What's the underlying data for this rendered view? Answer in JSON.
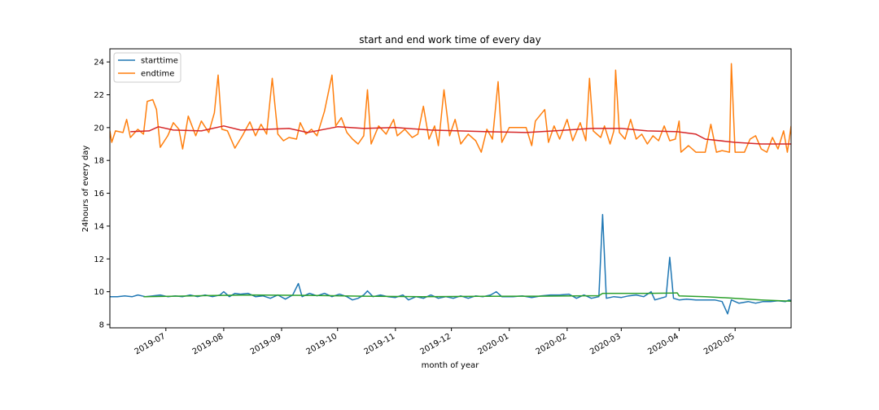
{
  "chart_data": {
    "type": "line",
    "title": "start and end work time of every day",
    "xlabel": "month of year",
    "ylabel": "24hours of every day",
    "xlim": [
      "2019-06-01",
      "2020-05-31"
    ],
    "ylim": [
      7.8,
      24.8
    ],
    "yticks": [
      8,
      10,
      12,
      14,
      16,
      18,
      20,
      22,
      24
    ],
    "ytick_labels": [
      "8",
      "10",
      "12",
      "14",
      "16",
      "18",
      "20",
      "22",
      "24"
    ],
    "xticks": [
      "2019-07-01",
      "2019-08-01",
      "2019-09-01",
      "2019-10-01",
      "2019-11-01",
      "2019-12-01",
      "2020-01-01",
      "2020-02-01",
      "2020-03-01",
      "2020-04-01",
      "2020-05-01"
    ],
    "xtick_labels": [
      "2019-07",
      "2019-08",
      "2019-09",
      "2019-10",
      "2019-11",
      "2019-12",
      "2020-01",
      "2020-02",
      "2020-03",
      "2020-04",
      "2020-05"
    ],
    "legend": {
      "position": "top-left",
      "entries": [
        "starttime",
        "endtime"
      ]
    },
    "grid": false,
    "series": [
      {
        "name": "starttime",
        "color": "#1f77b4",
        "points": [
          [
            "2019-06-01",
            9.7
          ],
          [
            "2019-06-05",
            9.7
          ],
          [
            "2019-06-09",
            9.75
          ],
          [
            "2019-06-13",
            9.7
          ],
          [
            "2019-06-16",
            9.8
          ],
          [
            "2019-06-20",
            9.7
          ],
          [
            "2019-06-24",
            9.75
          ],
          [
            "2019-06-28",
            9.8
          ],
          [
            "2019-07-02",
            9.7
          ],
          [
            "2019-07-06",
            9.75
          ],
          [
            "2019-07-10",
            9.7
          ],
          [
            "2019-07-14",
            9.8
          ],
          [
            "2019-07-18",
            9.7
          ],
          [
            "2019-07-22",
            9.8
          ],
          [
            "2019-07-26",
            9.7
          ],
          [
            "2019-07-30",
            9.8
          ],
          [
            "2019-08-01",
            10.0
          ],
          [
            "2019-08-04",
            9.7
          ],
          [
            "2019-08-07",
            9.9
          ],
          [
            "2019-08-10",
            9.85
          ],
          [
            "2019-08-14",
            9.9
          ],
          [
            "2019-08-18",
            9.7
          ],
          [
            "2019-08-22",
            9.75
          ],
          [
            "2019-08-26",
            9.6
          ],
          [
            "2019-08-30",
            9.8
          ],
          [
            "2019-09-03",
            9.55
          ],
          [
            "2019-09-07",
            9.8
          ],
          [
            "2019-09-10",
            10.5
          ],
          [
            "2019-09-12",
            9.7
          ],
          [
            "2019-09-16",
            9.9
          ],
          [
            "2019-09-20",
            9.75
          ],
          [
            "2019-09-24",
            9.9
          ],
          [
            "2019-09-28",
            9.7
          ],
          [
            "2019-10-02",
            9.85
          ],
          [
            "2019-10-06",
            9.7
          ],
          [
            "2019-10-09",
            9.5
          ],
          [
            "2019-10-12",
            9.6
          ],
          [
            "2019-10-15",
            9.8
          ],
          [
            "2019-10-17",
            10.05
          ],
          [
            "2019-10-20",
            9.7
          ],
          [
            "2019-10-24",
            9.8
          ],
          [
            "2019-10-28",
            9.7
          ],
          [
            "2019-11-01",
            9.65
          ],
          [
            "2019-11-05",
            9.8
          ],
          [
            "2019-11-08",
            9.5
          ],
          [
            "2019-11-12",
            9.7
          ],
          [
            "2019-11-16",
            9.6
          ],
          [
            "2019-11-20",
            9.8
          ],
          [
            "2019-11-24",
            9.6
          ],
          [
            "2019-11-28",
            9.7
          ],
          [
            "2019-12-02",
            9.6
          ],
          [
            "2019-12-06",
            9.75
          ],
          [
            "2019-12-10",
            9.6
          ],
          [
            "2019-12-14",
            9.75
          ],
          [
            "2019-12-18",
            9.7
          ],
          [
            "2019-12-22",
            9.8
          ],
          [
            "2019-12-25",
            10.0
          ],
          [
            "2019-12-28",
            9.7
          ],
          [
            "2020-01-03",
            9.7
          ],
          [
            "2020-01-08",
            9.75
          ],
          [
            "2020-01-13",
            9.65
          ],
          [
            "2020-01-18",
            9.75
          ],
          [
            "2020-01-23",
            9.8
          ],
          [
            "2020-01-28",
            9.8
          ],
          [
            "2020-02-02",
            9.85
          ],
          [
            "2020-02-06",
            9.6
          ],
          [
            "2020-02-10",
            9.8
          ],
          [
            "2020-02-14",
            9.6
          ],
          [
            "2020-02-18",
            9.7
          ],
          [
            "2020-02-20",
            14.7
          ],
          [
            "2020-02-22",
            9.6
          ],
          [
            "2020-02-26",
            9.7
          ],
          [
            "2020-03-01",
            9.65
          ],
          [
            "2020-03-05",
            9.75
          ],
          [
            "2020-03-09",
            9.8
          ],
          [
            "2020-03-13",
            9.7
          ],
          [
            "2020-03-17",
            10.0
          ],
          [
            "2020-03-19",
            9.5
          ],
          [
            "2020-03-22",
            9.6
          ],
          [
            "2020-03-25",
            9.7
          ],
          [
            "2020-03-27",
            12.1
          ],
          [
            "2020-03-29",
            9.6
          ],
          [
            "2020-04-01",
            9.5
          ],
          [
            "2020-04-05",
            9.55
          ],
          [
            "2020-04-10",
            9.5
          ],
          [
            "2020-04-15",
            9.5
          ],
          [
            "2020-04-20",
            9.5
          ],
          [
            "2020-04-24",
            9.4
          ],
          [
            "2020-04-27",
            8.65
          ],
          [
            "2020-04-29",
            9.5
          ],
          [
            "2020-05-03",
            9.3
          ],
          [
            "2020-05-08",
            9.4
          ],
          [
            "2020-05-12",
            9.3
          ],
          [
            "2020-05-16",
            9.4
          ],
          [
            "2020-05-20",
            9.4
          ],
          [
            "2020-05-24",
            9.45
          ],
          [
            "2020-05-28",
            9.4
          ],
          [
            "2020-05-30",
            9.5
          ],
          [
            "2020-05-31",
            9.45
          ]
        ]
      },
      {
        "name": "endtime",
        "color": "#ff7f0e",
        "points": [
          [
            "2019-06-01",
            19.8
          ],
          [
            "2019-06-02",
            19.1
          ],
          [
            "2019-06-04",
            19.8
          ],
          [
            "2019-06-08",
            19.7
          ],
          [
            "2019-06-10",
            20.5
          ],
          [
            "2019-06-12",
            19.4
          ],
          [
            "2019-06-16",
            19.9
          ],
          [
            "2019-06-19",
            19.6
          ],
          [
            "2019-06-21",
            21.6
          ],
          [
            "2019-06-24",
            21.7
          ],
          [
            "2019-06-26",
            21.1
          ],
          [
            "2019-06-28",
            18.8
          ],
          [
            "2019-07-02",
            19.5
          ],
          [
            "2019-07-05",
            20.3
          ],
          [
            "2019-07-08",
            19.9
          ],
          [
            "2019-07-10",
            18.7
          ],
          [
            "2019-07-13",
            20.7
          ],
          [
            "2019-07-17",
            19.5
          ],
          [
            "2019-07-20",
            20.4
          ],
          [
            "2019-07-24",
            19.7
          ],
          [
            "2019-07-27",
            20.9
          ],
          [
            "2019-07-29",
            23.2
          ],
          [
            "2019-07-31",
            19.9
          ],
          [
            "2019-08-03",
            19.8
          ],
          [
            "2019-08-07",
            18.75
          ],
          [
            "2019-08-11",
            19.5
          ],
          [
            "2019-08-15",
            20.35
          ],
          [
            "2019-08-18",
            19.5
          ],
          [
            "2019-08-21",
            20.2
          ],
          [
            "2019-08-24",
            19.6
          ],
          [
            "2019-08-27",
            23.0
          ],
          [
            "2019-08-30",
            19.6
          ],
          [
            "2019-09-02",
            19.2
          ],
          [
            "2019-09-05",
            19.4
          ],
          [
            "2019-09-09",
            19.3
          ],
          [
            "2019-09-11",
            20.3
          ],
          [
            "2019-09-14",
            19.6
          ],
          [
            "2019-09-17",
            19.9
          ],
          [
            "2019-09-20",
            19.5
          ],
          [
            "2019-09-24",
            21.0
          ],
          [
            "2019-09-28",
            23.2
          ],
          [
            "2019-09-30",
            20.1
          ],
          [
            "2019-10-03",
            20.6
          ],
          [
            "2019-10-06",
            19.7
          ],
          [
            "2019-10-09",
            19.3
          ],
          [
            "2019-10-12",
            19.0
          ],
          [
            "2019-10-15",
            19.5
          ],
          [
            "2019-10-17",
            22.3
          ],
          [
            "2019-10-19",
            19.0
          ],
          [
            "2019-10-23",
            20.1
          ],
          [
            "2019-10-27",
            19.6
          ],
          [
            "2019-10-31",
            20.5
          ],
          [
            "2019-11-02",
            19.5
          ],
          [
            "2019-11-06",
            19.9
          ],
          [
            "2019-11-10",
            19.4
          ],
          [
            "2019-11-13",
            19.6
          ],
          [
            "2019-11-16",
            21.3
          ],
          [
            "2019-11-19",
            19.3
          ],
          [
            "2019-11-22",
            20.1
          ],
          [
            "2019-11-24",
            18.9
          ],
          [
            "2019-11-27",
            22.3
          ],
          [
            "2019-11-30",
            19.5
          ],
          [
            "2019-12-03",
            20.5
          ],
          [
            "2019-12-06",
            19.0
          ],
          [
            "2019-12-10",
            19.6
          ],
          [
            "2019-12-14",
            19.2
          ],
          [
            "2019-12-17",
            18.5
          ],
          [
            "2019-12-20",
            19.9
          ],
          [
            "2019-12-23",
            19.3
          ],
          [
            "2019-12-26",
            22.8
          ],
          [
            "2019-12-28",
            19.1
          ],
          [
            "2020-01-01",
            20.0
          ],
          [
            "2020-01-05",
            20.0
          ],
          [
            "2020-01-10",
            20.0
          ],
          [
            "2020-01-13",
            18.9
          ],
          [
            "2020-01-15",
            20.4
          ],
          [
            "2020-01-20",
            21.1
          ],
          [
            "2020-01-22",
            19.1
          ],
          [
            "2020-01-25",
            20.1
          ],
          [
            "2020-01-28",
            19.3
          ],
          [
            "2020-02-01",
            20.5
          ],
          [
            "2020-02-04",
            19.2
          ],
          [
            "2020-02-08",
            20.3
          ],
          [
            "2020-02-11",
            19.2
          ],
          [
            "2020-02-13",
            23.0
          ],
          [
            "2020-02-15",
            19.8
          ],
          [
            "2020-02-19",
            19.4
          ],
          [
            "2020-02-21",
            20.1
          ],
          [
            "2020-02-24",
            19.0
          ],
          [
            "2020-02-26",
            19.8
          ],
          [
            "2020-02-27",
            23.5
          ],
          [
            "2020-02-29",
            19.7
          ],
          [
            "2020-03-03",
            19.3
          ],
          [
            "2020-03-06",
            20.5
          ],
          [
            "2020-03-09",
            19.3
          ],
          [
            "2020-03-12",
            19.6
          ],
          [
            "2020-03-15",
            19.0
          ],
          [
            "2020-03-18",
            19.5
          ],
          [
            "2020-03-21",
            19.2
          ],
          [
            "2020-03-24",
            20.1
          ],
          [
            "2020-03-27",
            19.2
          ],
          [
            "2020-03-30",
            19.3
          ],
          [
            "2020-04-01",
            20.4
          ],
          [
            "2020-04-02",
            18.5
          ],
          [
            "2020-04-06",
            18.9
          ],
          [
            "2020-04-10",
            18.5
          ],
          [
            "2020-04-15",
            18.5
          ],
          [
            "2020-04-18",
            20.2
          ],
          [
            "2020-04-21",
            18.5
          ],
          [
            "2020-04-24",
            18.6
          ],
          [
            "2020-04-28",
            18.5
          ],
          [
            "2020-04-29",
            23.9
          ],
          [
            "2020-05-01",
            18.5
          ],
          [
            "2020-05-06",
            18.5
          ],
          [
            "2020-05-09",
            19.3
          ],
          [
            "2020-05-12",
            19.5
          ],
          [
            "2020-05-15",
            18.7
          ],
          [
            "2020-05-18",
            18.5
          ],
          [
            "2020-05-21",
            19.4
          ],
          [
            "2020-05-24",
            18.7
          ],
          [
            "2020-05-27",
            19.8
          ],
          [
            "2020-05-29",
            18.5
          ],
          [
            "2020-05-31",
            20.1
          ]
        ]
      },
      {
        "name": "",
        "color": "#2ca02c",
        "points": [
          [
            "2019-06-19",
            9.7
          ],
          [
            "2019-07-15",
            9.75
          ],
          [
            "2019-08-15",
            9.8
          ],
          [
            "2019-09-15",
            9.78
          ],
          [
            "2019-10-15",
            9.73
          ],
          [
            "2019-11-15",
            9.7
          ],
          [
            "2019-12-15",
            9.72
          ],
          [
            "2020-01-15",
            9.73
          ],
          [
            "2020-02-18",
            9.76
          ],
          [
            "2020-02-20",
            9.9
          ],
          [
            "2020-03-15",
            9.9
          ],
          [
            "2020-03-28",
            9.92
          ],
          [
            "2020-03-31",
            9.93
          ],
          [
            "2020-04-01",
            9.75
          ],
          [
            "2020-04-15",
            9.7
          ],
          [
            "2020-05-01",
            9.6
          ],
          [
            "2020-05-15",
            9.5
          ],
          [
            "2020-05-31",
            9.42
          ]
        ]
      },
      {
        "name": "",
        "color": "#d62728",
        "points": [
          [
            "2019-06-12",
            19.75
          ],
          [
            "2019-06-22",
            19.8
          ],
          [
            "2019-06-27",
            20.05
          ],
          [
            "2019-07-05",
            19.85
          ],
          [
            "2019-07-20",
            19.8
          ],
          [
            "2019-08-01",
            20.1
          ],
          [
            "2019-08-10",
            19.85
          ],
          [
            "2019-08-25",
            19.9
          ],
          [
            "2019-09-05",
            19.95
          ],
          [
            "2019-09-15",
            19.7
          ],
          [
            "2019-10-01",
            20.05
          ],
          [
            "2019-10-15",
            19.95
          ],
          [
            "2019-11-01",
            20.0
          ],
          [
            "2019-11-20",
            19.85
          ],
          [
            "2019-12-05",
            19.8
          ],
          [
            "2019-12-20",
            19.75
          ],
          [
            "2020-01-10",
            19.7
          ],
          [
            "2020-01-25",
            19.8
          ],
          [
            "2020-02-14",
            19.95
          ],
          [
            "2020-03-01",
            19.95
          ],
          [
            "2020-03-15",
            19.8
          ],
          [
            "2020-03-31",
            19.75
          ],
          [
            "2020-04-10",
            19.6
          ],
          [
            "2020-04-15",
            19.3
          ],
          [
            "2020-05-01",
            19.1
          ],
          [
            "2020-05-15",
            19.0
          ],
          [
            "2020-05-31",
            19.0
          ]
        ]
      }
    ]
  }
}
